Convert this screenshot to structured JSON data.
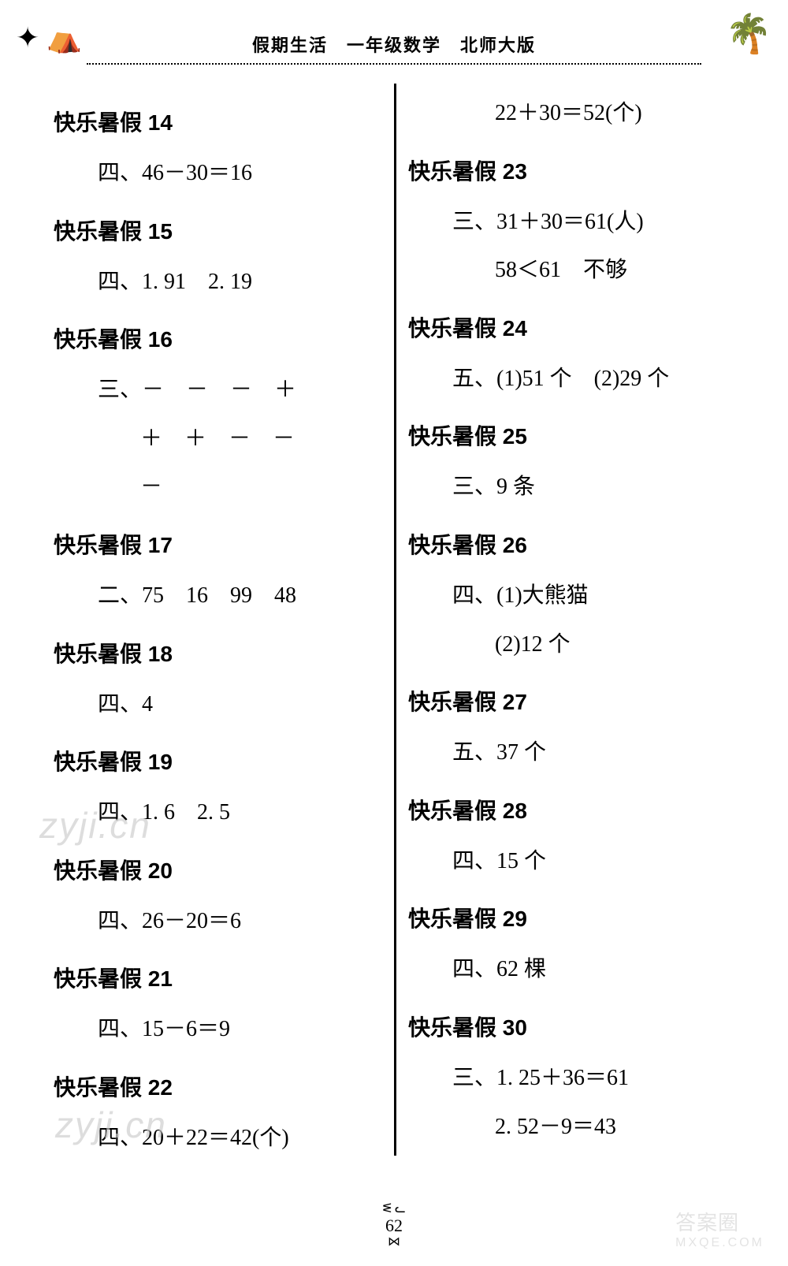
{
  "header": "假期生活　一年级数学　北师大版",
  "page_number": "62",
  "decorations": {
    "left": "⛺",
    "right": "🌴",
    "butterfly": "✦"
  },
  "watermarks": {
    "w1": "zyji.cn",
    "w2": "zyji.cn",
    "w3_top": "答案圈",
    "w3_bottom": "MXQE.COM"
  },
  "left_col": [
    {
      "type": "title",
      "text": "快乐暑假 14"
    },
    {
      "type": "answer",
      "text": "四、46－30＝16"
    },
    {
      "type": "title",
      "text": "快乐暑假 15"
    },
    {
      "type": "answer",
      "text": "四、1. 91　2. 19"
    },
    {
      "type": "title",
      "text": "快乐暑假 16"
    },
    {
      "type": "answer",
      "text": "三、－　－　－　＋"
    },
    {
      "type": "answer-cont",
      "text": "＋　＋　－　－"
    },
    {
      "type": "answer-cont",
      "text": "－"
    },
    {
      "type": "title",
      "text": "快乐暑假 17"
    },
    {
      "type": "answer",
      "text": "二、75　16　99　48"
    },
    {
      "type": "title",
      "text": "快乐暑假 18"
    },
    {
      "type": "answer",
      "text": "四、4"
    },
    {
      "type": "title",
      "text": "快乐暑假 19"
    },
    {
      "type": "answer",
      "text": "四、1. 6　2. 5"
    },
    {
      "type": "title",
      "text": "快乐暑假 20"
    },
    {
      "type": "answer",
      "text": "四、26－20＝6"
    },
    {
      "type": "title",
      "text": "快乐暑假 21"
    },
    {
      "type": "answer",
      "text": "四、15－6＝9"
    },
    {
      "type": "title",
      "text": "快乐暑假 22"
    },
    {
      "type": "answer",
      "text": "四、20＋22＝42(个)"
    }
  ],
  "right_col": [
    {
      "type": "answer-cont",
      "text": "22＋30＝52(个)"
    },
    {
      "type": "title",
      "text": "快乐暑假 23"
    },
    {
      "type": "answer",
      "text": "三、31＋30＝61(人)"
    },
    {
      "type": "answer-cont",
      "text": "58＜61　不够"
    },
    {
      "type": "title",
      "text": "快乐暑假 24"
    },
    {
      "type": "answer",
      "text": "五、(1)51 个　(2)29 个"
    },
    {
      "type": "title",
      "text": "快乐暑假 25"
    },
    {
      "type": "answer",
      "text": "三、9 条"
    },
    {
      "type": "title",
      "text": "快乐暑假 26"
    },
    {
      "type": "answer",
      "text": "四、(1)大熊猫"
    },
    {
      "type": "answer-cont",
      "text": "(2)12 个"
    },
    {
      "type": "title",
      "text": "快乐暑假 27"
    },
    {
      "type": "answer",
      "text": "五、37 个"
    },
    {
      "type": "title",
      "text": "快乐暑假 28"
    },
    {
      "type": "answer",
      "text": "四、15 个"
    },
    {
      "type": "title",
      "text": "快乐暑假 29"
    },
    {
      "type": "answer",
      "text": "四、62 棵"
    },
    {
      "type": "title",
      "text": "快乐暑假 30"
    },
    {
      "type": "answer",
      "text": "三、1. 25＋36＝61"
    },
    {
      "type": "answer-cont",
      "text": "2. 52－9＝43"
    }
  ]
}
